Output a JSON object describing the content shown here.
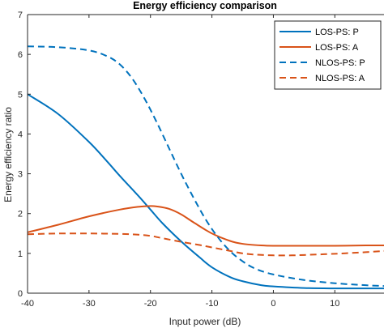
{
  "chart_data": {
    "type": "line",
    "title": "Energy efficiency comparison",
    "xlabel": "Input power (dB)",
    "ylabel": "Energy efficiency ratio",
    "xlim": [
      -40,
      18
    ],
    "ylim": [
      0,
      7
    ],
    "xticks": [
      -40,
      -30,
      -20,
      -10,
      0,
      10
    ],
    "yticks": [
      0,
      1,
      2,
      3,
      4,
      5,
      6,
      7
    ],
    "grid": false,
    "legend_position": "top-right",
    "series": [
      {
        "name": "LOS-PS: P",
        "color": "#0072BD",
        "dash": "solid",
        "x": [
          -40,
          -35,
          -30,
          -27,
          -25,
          -22,
          -20,
          -18,
          -15,
          -12,
          -10,
          -7,
          -5,
          -2,
          0,
          5,
          10,
          15,
          18
        ],
        "y": [
          5.0,
          4.5,
          3.8,
          3.3,
          2.95,
          2.45,
          2.1,
          1.75,
          1.3,
          0.9,
          0.65,
          0.4,
          0.3,
          0.2,
          0.17,
          0.13,
          0.12,
          0.12,
          0.12
        ]
      },
      {
        "name": "LOS-PS: A",
        "color": "#D95319",
        "dash": "solid",
        "x": [
          -40,
          -35,
          -30,
          -25,
          -22,
          -20,
          -19,
          -17,
          -15,
          -13,
          -10,
          -7,
          -5,
          -2,
          0,
          5,
          10,
          15,
          18
        ],
        "y": [
          1.53,
          1.72,
          1.93,
          2.1,
          2.17,
          2.19,
          2.18,
          2.12,
          1.98,
          1.78,
          1.5,
          1.31,
          1.24,
          1.2,
          1.19,
          1.19,
          1.19,
          1.2,
          1.2
        ]
      },
      {
        "name": "NLOS-PS: P",
        "color": "#0072BD",
        "dash": "dashed",
        "x": [
          -40,
          -35,
          -30,
          -27,
          -25,
          -23,
          -21,
          -19,
          -17,
          -15,
          -13,
          -11,
          -9,
          -7,
          -5,
          -3,
          0,
          5,
          10,
          15,
          18
        ],
        "y": [
          6.2,
          6.18,
          6.1,
          5.95,
          5.75,
          5.4,
          4.9,
          4.3,
          3.65,
          3.0,
          2.4,
          1.85,
          1.4,
          1.05,
          0.8,
          0.62,
          0.47,
          0.33,
          0.25,
          0.2,
          0.18
        ]
      },
      {
        "name": "NLOS-PS: A",
        "color": "#D95319",
        "dash": "dashed",
        "x": [
          -40,
          -35,
          -30,
          -25,
          -22,
          -20,
          -18,
          -15,
          -12,
          -10,
          -7,
          -5,
          -3,
          0,
          3,
          5,
          10,
          15,
          18
        ],
        "y": [
          1.48,
          1.5,
          1.5,
          1.49,
          1.47,
          1.44,
          1.38,
          1.29,
          1.21,
          1.15,
          1.06,
          1.0,
          0.97,
          0.95,
          0.95,
          0.96,
          0.99,
          1.03,
          1.06
        ]
      }
    ]
  }
}
